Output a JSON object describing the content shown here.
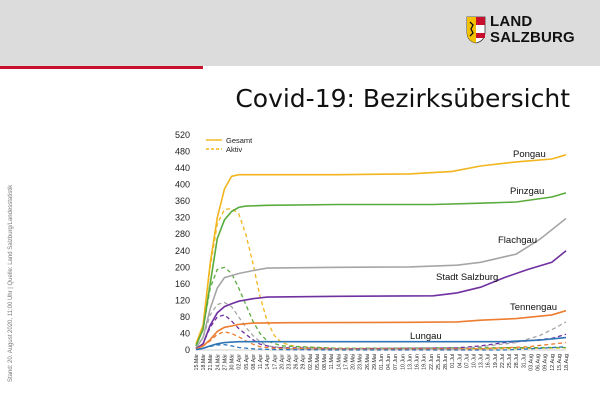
{
  "header": {
    "logo_line1": "LAND",
    "logo_line2": "SALZBURG",
    "title": "Covid-19: Bezirksübersicht"
  },
  "side_note": "Stand: 20. August 2020, 11:00 Uhr  |  Quelle: Land Salzburg/Landesstatistik",
  "colors": {
    "band": "#dcdcdc",
    "accent": "#c8102e"
  },
  "chart_data": {
    "type": "line",
    "ylim": [
      0,
      520
    ],
    "yticks": [
      0,
      40,
      80,
      120,
      160,
      200,
      240,
      280,
      320,
      360,
      400,
      440,
      480,
      520
    ],
    "x_labels": [
      "15.Mär",
      "18.Mär",
      "21.Mär",
      "24.Mär",
      "27.Mär",
      "30.Mär",
      "02.Apr",
      "05.Apr",
      "08.Apr",
      "11.Apr",
      "14.Apr",
      "17.Apr",
      "20.Apr",
      "23.Apr",
      "26.Apr",
      "29.Apr",
      "02.Mai",
      "05.Mai",
      "08.Mai",
      "11.Mai",
      "14.Mai",
      "17.Mai",
      "20.Mai",
      "23.Mai",
      "26.Mai",
      "29.Mai",
      "01.Jun",
      "04.Jun",
      "07.Jun",
      "10.Jun",
      "13.Jun",
      "16.Jun",
      "19.Jun",
      "22.Jun",
      "25.Jun",
      "28.Jun",
      "01.Jul",
      "04.Jul",
      "07.Jul",
      "10.Jul",
      "13.Jul",
      "16.Jul",
      "19.Jul",
      "22.Jul",
      "25.Jul",
      "28.Jul",
      "31.Jul",
      "03.Aug",
      "06.Aug",
      "09.Aug",
      "12.Aug",
      "15.Aug",
      "18.Aug"
    ],
    "legend": [
      {
        "name": "Gesamt",
        "style": "solid",
        "color": "#f2b51d"
      },
      {
        "name": "Aktiv",
        "style": "dashed",
        "color": "#f2b51d"
      }
    ],
    "series": [
      {
        "name": "Pongau",
        "color": "#f2b51d",
        "total": [
          [
            0,
            15
          ],
          [
            3,
            60
          ],
          [
            6,
            210
          ],
          [
            9,
            320
          ],
          [
            12,
            390
          ],
          [
            15,
            420
          ],
          [
            18,
            424
          ],
          [
            24,
            424
          ],
          [
            60,
            424
          ],
          [
            90,
            426
          ],
          [
            108,
            432
          ],
          [
            120,
            445
          ],
          [
            135,
            455
          ],
          [
            150,
            462
          ],
          [
            156,
            472
          ]
        ],
        "active": [
          [
            0,
            15
          ],
          [
            3,
            60
          ],
          [
            6,
            200
          ],
          [
            9,
            305
          ],
          [
            12,
            340
          ],
          [
            15,
            342
          ],
          [
            18,
            330
          ],
          [
            21,
            280
          ],
          [
            24,
            210
          ],
          [
            27,
            130
          ],
          [
            30,
            70
          ],
          [
            33,
            35
          ],
          [
            36,
            18
          ],
          [
            42,
            8
          ],
          [
            60,
            4
          ],
          [
            120,
            3
          ],
          [
            156,
            5
          ]
        ]
      },
      {
        "name": "Pinzgau",
        "color": "#5aab3d",
        "total": [
          [
            0,
            10
          ],
          [
            3,
            50
          ],
          [
            6,
            160
          ],
          [
            9,
            270
          ],
          [
            12,
            315
          ],
          [
            15,
            335
          ],
          [
            18,
            345
          ],
          [
            21,
            348
          ],
          [
            30,
            350
          ],
          [
            60,
            352
          ],
          [
            100,
            352
          ],
          [
            120,
            355
          ],
          [
            135,
            358
          ],
          [
            150,
            370
          ],
          [
            156,
            380
          ]
        ],
        "active": [
          [
            0,
            10
          ],
          [
            3,
            50
          ],
          [
            6,
            150
          ],
          [
            9,
            195
          ],
          [
            12,
            200
          ],
          [
            15,
            185
          ],
          [
            18,
            150
          ],
          [
            21,
            110
          ],
          [
            24,
            70
          ],
          [
            27,
            40
          ],
          [
            30,
            22
          ],
          [
            36,
            10
          ],
          [
            60,
            4
          ],
          [
            156,
            6
          ]
        ]
      },
      {
        "name": "Flachgau",
        "color": "#a6a6a6",
        "total": [
          [
            0,
            5
          ],
          [
            3,
            30
          ],
          [
            6,
            100
          ],
          [
            9,
            150
          ],
          [
            12,
            175
          ],
          [
            15,
            180
          ],
          [
            18,
            185
          ],
          [
            24,
            192
          ],
          [
            30,
            198
          ],
          [
            60,
            200
          ],
          [
            90,
            201
          ],
          [
            110,
            205
          ],
          [
            120,
            212
          ],
          [
            135,
            232
          ],
          [
            145,
            268
          ],
          [
            152,
            300
          ],
          [
            156,
            318
          ]
        ],
        "active": [
          [
            0,
            5
          ],
          [
            3,
            30
          ],
          [
            6,
            85
          ],
          [
            9,
            110
          ],
          [
            12,
            115
          ],
          [
            15,
            105
          ],
          [
            18,
            80
          ],
          [
            21,
            55
          ],
          [
            24,
            35
          ],
          [
            27,
            20
          ],
          [
            30,
            10
          ],
          [
            40,
            3
          ],
          [
            110,
            3
          ],
          [
            120,
            8
          ],
          [
            135,
            18
          ],
          [
            145,
            35
          ],
          [
            152,
            55
          ],
          [
            156,
            68
          ]
        ]
      },
      {
        "name": "Stadt Salzburg",
        "color": "#7030a0",
        "total": [
          [
            0,
            3
          ],
          [
            3,
            15
          ],
          [
            6,
            60
          ],
          [
            9,
            90
          ],
          [
            12,
            105
          ],
          [
            15,
            112
          ],
          [
            18,
            118
          ],
          [
            24,
            124
          ],
          [
            30,
            128
          ],
          [
            60,
            130
          ],
          [
            100,
            131
          ],
          [
            110,
            138
          ],
          [
            120,
            152
          ],
          [
            130,
            175
          ],
          [
            140,
            195
          ],
          [
            150,
            212
          ],
          [
            156,
            240
          ]
        ],
        "active": [
          [
            0,
            3
          ],
          [
            3,
            15
          ],
          [
            6,
            55
          ],
          [
            9,
            80
          ],
          [
            12,
            85
          ],
          [
            15,
            70
          ],
          [
            18,
            52
          ],
          [
            21,
            38
          ],
          [
            24,
            25
          ],
          [
            27,
            14
          ],
          [
            33,
            6
          ],
          [
            60,
            3
          ],
          [
            110,
            5
          ],
          [
            120,
            10
          ],
          [
            130,
            18
          ],
          [
            140,
            22
          ],
          [
            150,
            28
          ],
          [
            156,
            38
          ]
        ]
      },
      {
        "name": "Tennengau",
        "color": "#ed7d31",
        "total": [
          [
            0,
            2
          ],
          [
            3,
            10
          ],
          [
            6,
            25
          ],
          [
            9,
            45
          ],
          [
            12,
            55
          ],
          [
            15,
            58
          ],
          [
            18,
            62
          ],
          [
            24,
            65
          ],
          [
            40,
            66
          ],
          [
            90,
            67
          ],
          [
            110,
            68
          ],
          [
            120,
            72
          ],
          [
            135,
            76
          ],
          [
            150,
            85
          ],
          [
            156,
            95
          ]
        ],
        "active": [
          [
            0,
            2
          ],
          [
            3,
            10
          ],
          [
            6,
            22
          ],
          [
            9,
            38
          ],
          [
            12,
            44
          ],
          [
            15,
            40
          ],
          [
            18,
            32
          ],
          [
            21,
            22
          ],
          [
            24,
            14
          ],
          [
            27,
            8
          ],
          [
            33,
            4
          ],
          [
            60,
            2
          ],
          [
            120,
            3
          ],
          [
            140,
            8
          ],
          [
            156,
            18
          ]
        ]
      },
      {
        "name": "Lungau",
        "color": "#2e75b6",
        "total": [
          [
            0,
            1
          ],
          [
            3,
            4
          ],
          [
            6,
            10
          ],
          [
            9,
            15
          ],
          [
            12,
            18
          ],
          [
            18,
            20
          ],
          [
            30,
            20
          ],
          [
            100,
            20
          ],
          [
            130,
            20
          ],
          [
            145,
            24
          ],
          [
            156,
            30
          ]
        ],
        "active": [
          [
            0,
            1
          ],
          [
            3,
            4
          ],
          [
            6,
            9
          ],
          [
            9,
            12
          ],
          [
            12,
            13
          ],
          [
            15,
            10
          ],
          [
            18,
            6
          ],
          [
            24,
            3
          ],
          [
            33,
            1
          ],
          [
            60,
            0
          ],
          [
            130,
            0
          ],
          [
            145,
            4
          ],
          [
            156,
            8
          ]
        ]
      }
    ]
  }
}
